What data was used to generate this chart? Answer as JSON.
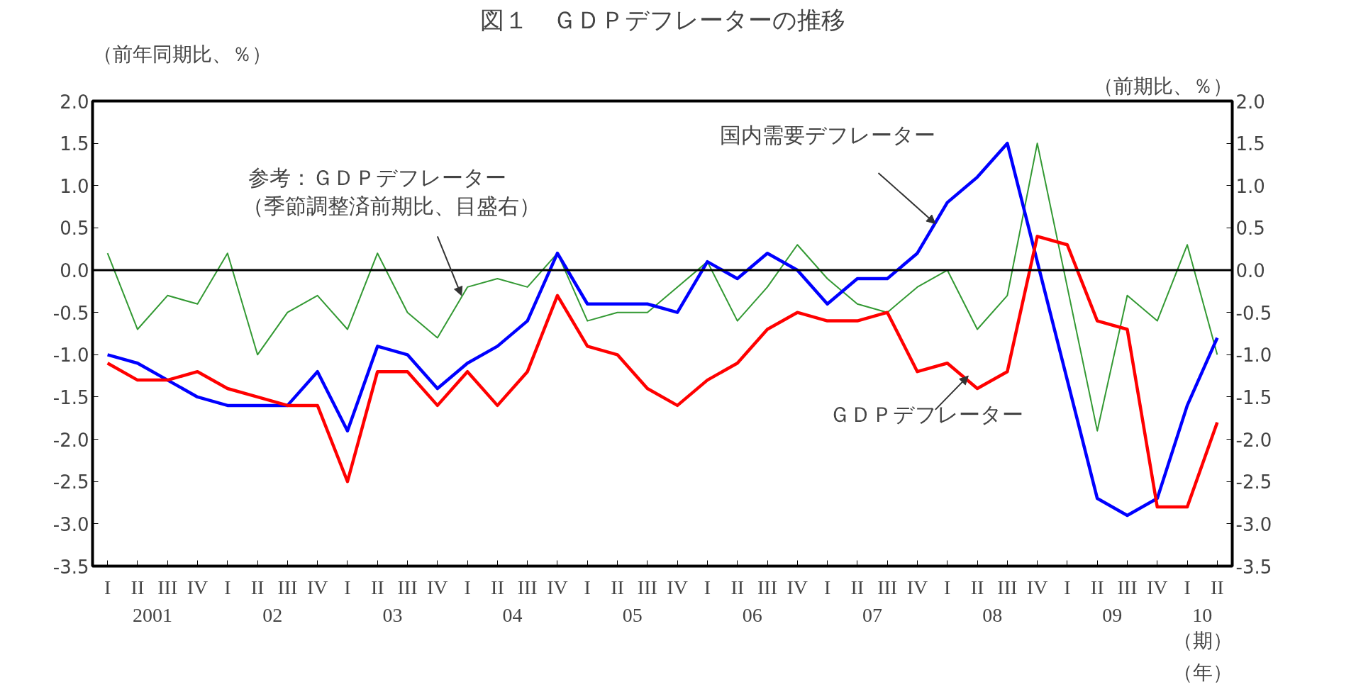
{
  "chart_data": {
    "type": "line",
    "title": "図１　ＧＤＰデフレーターの推移",
    "ylabel": "（前年同期比、％）",
    "y2label": "（前期比、％）",
    "xlabel": "（期）",
    "categories": [
      "I",
      "II",
      "III",
      "IV",
      "I",
      "II",
      "III",
      "IV",
      "I",
      "II",
      "III",
      "IV",
      "I",
      "II",
      "III",
      "IV",
      "I",
      "II",
      "III",
      "IV",
      "I",
      "II",
      "III",
      "IV",
      "I",
      "II",
      "III",
      "IV",
      "I",
      "II",
      "III",
      "IV",
      "I",
      "II",
      "III",
      "IV",
      "I",
      "II"
    ],
    "series": [
      {
        "name": "参考：ＧＤＰデフレーター（季節調整済前期比、目盛右）",
        "color": "#339933",
        "axis": "y2",
        "values": [
          0.2,
          -0.7,
          -0.3,
          -0.4,
          0.2,
          -1.0,
          -0.5,
          -0.3,
          -0.7,
          0.2,
          -0.5,
          -0.8,
          -0.2,
          -0.1,
          -0.2,
          0.2,
          -0.6,
          -0.5,
          -0.5,
          -0.2,
          0.1,
          -0.6,
          -0.2,
          0.3,
          -0.1,
          -0.4,
          -0.5,
          -0.2,
          0.0,
          -0.7,
          -0.3,
          1.5,
          -0.2,
          -1.9,
          -0.3,
          -0.6,
          0.3,
          -1.0
        ]
      },
      {
        "name": "国内需要デフレーター",
        "color": "#0000ff",
        "values": [
          -1.0,
          -1.1,
          -1.3,
          -1.5,
          -1.6,
          -1.6,
          -1.6,
          -1.2,
          -1.9,
          -0.9,
          -1.0,
          -1.4,
          -1.1,
          -0.9,
          -0.6,
          0.2,
          -0.4,
          -0.4,
          -0.4,
          -0.5,
          0.1,
          -0.1,
          0.2,
          0.0,
          -0.4,
          -0.1,
          -0.1,
          0.2,
          0.8,
          1.1,
          1.5,
          0.1,
          -1.3,
          -2.7,
          -2.9,
          -2.7,
          -1.6,
          -0.8
        ]
      },
      {
        "name": "ＧＤＰデフレーター",
        "color": "#ff0000",
        "values": [
          -1.1,
          -1.3,
          -1.3,
          -1.2,
          -1.4,
          -1.5,
          -1.6,
          -1.6,
          -2.5,
          -1.2,
          -1.2,
          -1.6,
          -1.2,
          -1.6,
          -1.2,
          -0.3,
          -0.9,
          -1.0,
          -1.4,
          -1.6,
          -1.3,
          -1.1,
          -0.7,
          -0.5,
          -0.6,
          -0.6,
          -0.5,
          -1.2,
          -1.1,
          -1.4,
          -1.2,
          0.4,
          0.3,
          -0.6,
          -0.7,
          -2.8,
          -2.8,
          -1.8
        ]
      }
    ],
    "ylim": [
      -3.5,
      2.0
    ],
    "yticks": [
      {
        "value": -3.5,
        "label": "-3.5"
      },
      {
        "value": -3.0,
        "label": "-3.0"
      },
      {
        "value": -2.5,
        "label": "-2.5"
      },
      {
        "value": -2.0,
        "label": "-2.0"
      },
      {
        "value": -1.5,
        "label": "-1.5"
      },
      {
        "value": -1.0,
        "label": "-1.0"
      },
      {
        "value": -0.5,
        "label": "-0.5"
      },
      {
        "value": 0.0,
        "label": "0.0"
      },
      {
        "value": 0.5,
        "label": "0.5"
      },
      {
        "value": 1.0,
        "label": "1.0"
      },
      {
        "value": 1.5,
        "label": "1.5"
      },
      {
        "value": 2.0,
        "label": "2.0"
      }
    ],
    "y2lim": [
      -3.5,
      2.0
    ],
    "y2ticks": [
      {
        "value": -3.5,
        "label": "-3.5"
      },
      {
        "value": -3.0,
        "label": "-3.0"
      },
      {
        "value": -2.5,
        "label": "-2.5"
      },
      {
        "value": -2.0,
        "label": "-2.0"
      },
      {
        "value": -1.5,
        "label": "-1.5"
      },
      {
        "value": -1.0,
        "label": "-1.0"
      },
      {
        "value": -0.5,
        "label": "-0.5"
      },
      {
        "value": 0.0,
        "label": "0.0"
      },
      {
        "value": 0.5,
        "label": "0.5"
      },
      {
        "value": 1.0,
        "label": "1.0"
      },
      {
        "value": 1.5,
        "label": "1.5"
      },
      {
        "value": 2.0,
        "label": "2.0"
      }
    ],
    "ref_lines": [
      {
        "axis": "y",
        "value": 0,
        "color": "#000000"
      }
    ],
    "annotations": [
      "2001",
      "02",
      "03",
      "04",
      "05",
      "06",
      "07",
      "08",
      "09",
      "10",
      "（年）"
    ],
    "grid": false,
    "legend": false,
    "marker": "none",
    "line_style": "solid"
  }
}
